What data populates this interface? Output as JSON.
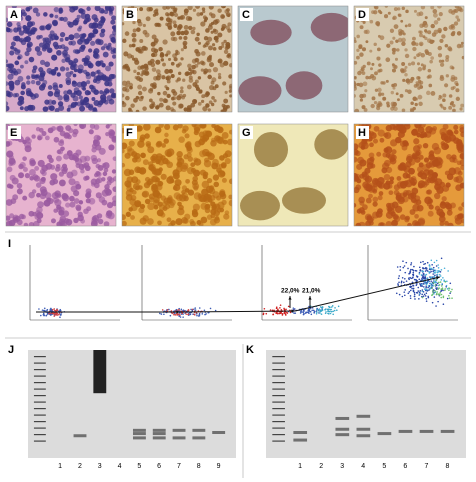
{
  "panels": [
    {
      "label": "A"
    },
    {
      "label": "B"
    },
    {
      "label": "C"
    },
    {
      "label": "D"
    },
    {
      "label": "E"
    },
    {
      "label": "F"
    },
    {
      "label": "G"
    },
    {
      "label": "H"
    }
  ],
  "flow": {
    "label": "I",
    "gates": [
      "22,0%",
      "21,0%"
    ]
  },
  "gels": [
    {
      "label": "J",
      "lanes": [
        "1",
        "2",
        "3",
        "4",
        "5",
        "6",
        "7",
        "8",
        "9"
      ]
    },
    {
      "label": "K",
      "lanes": [
        "1",
        "2",
        "3",
        "4",
        "5",
        "6",
        "7",
        "8"
      ]
    }
  ]
}
